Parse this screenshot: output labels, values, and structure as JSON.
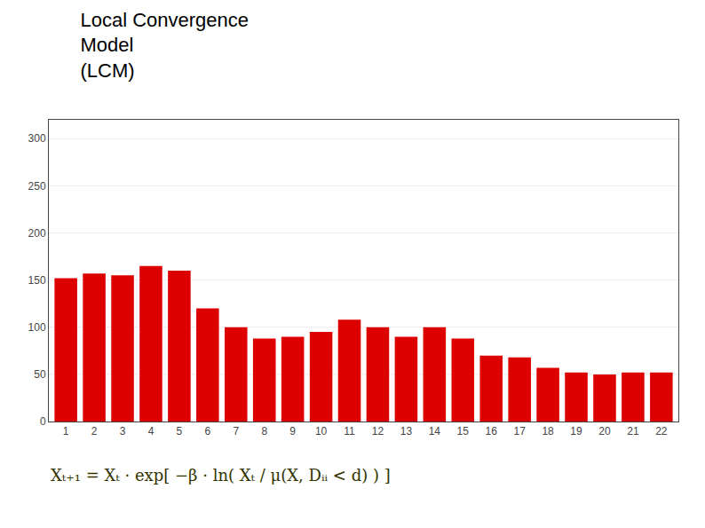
{
  "chart_data": {
    "type": "bar",
    "title": "Local Convergence\nModel\n(LCM)",
    "categories": [
      "1",
      "2",
      "3",
      "4",
      "5",
      "6",
      "7",
      "8",
      "9",
      "10",
      "11",
      "12",
      "13",
      "14",
      "15",
      "16",
      "17",
      "18",
      "19",
      "20",
      "21",
      "22"
    ],
    "values": [
      152,
      157,
      155,
      165,
      160,
      120,
      100,
      88,
      90,
      95,
      108,
      100,
      90,
      100,
      88,
      70,
      68,
      57,
      52,
      50,
      52,
      52
    ],
    "color": "#dd0000",
    "ylim": [
      0,
      320
    ],
    "yticks": [
      0,
      50,
      100,
      150,
      200,
      250,
      300
    ],
    "grid": true,
    "annotations": [
      {
        "text": "Xₜ₊₁ = Xₜ · exp[ −β · ln( Xₜ / μ(X, Dᵢᵢ < d) ) ]"
      }
    ]
  }
}
